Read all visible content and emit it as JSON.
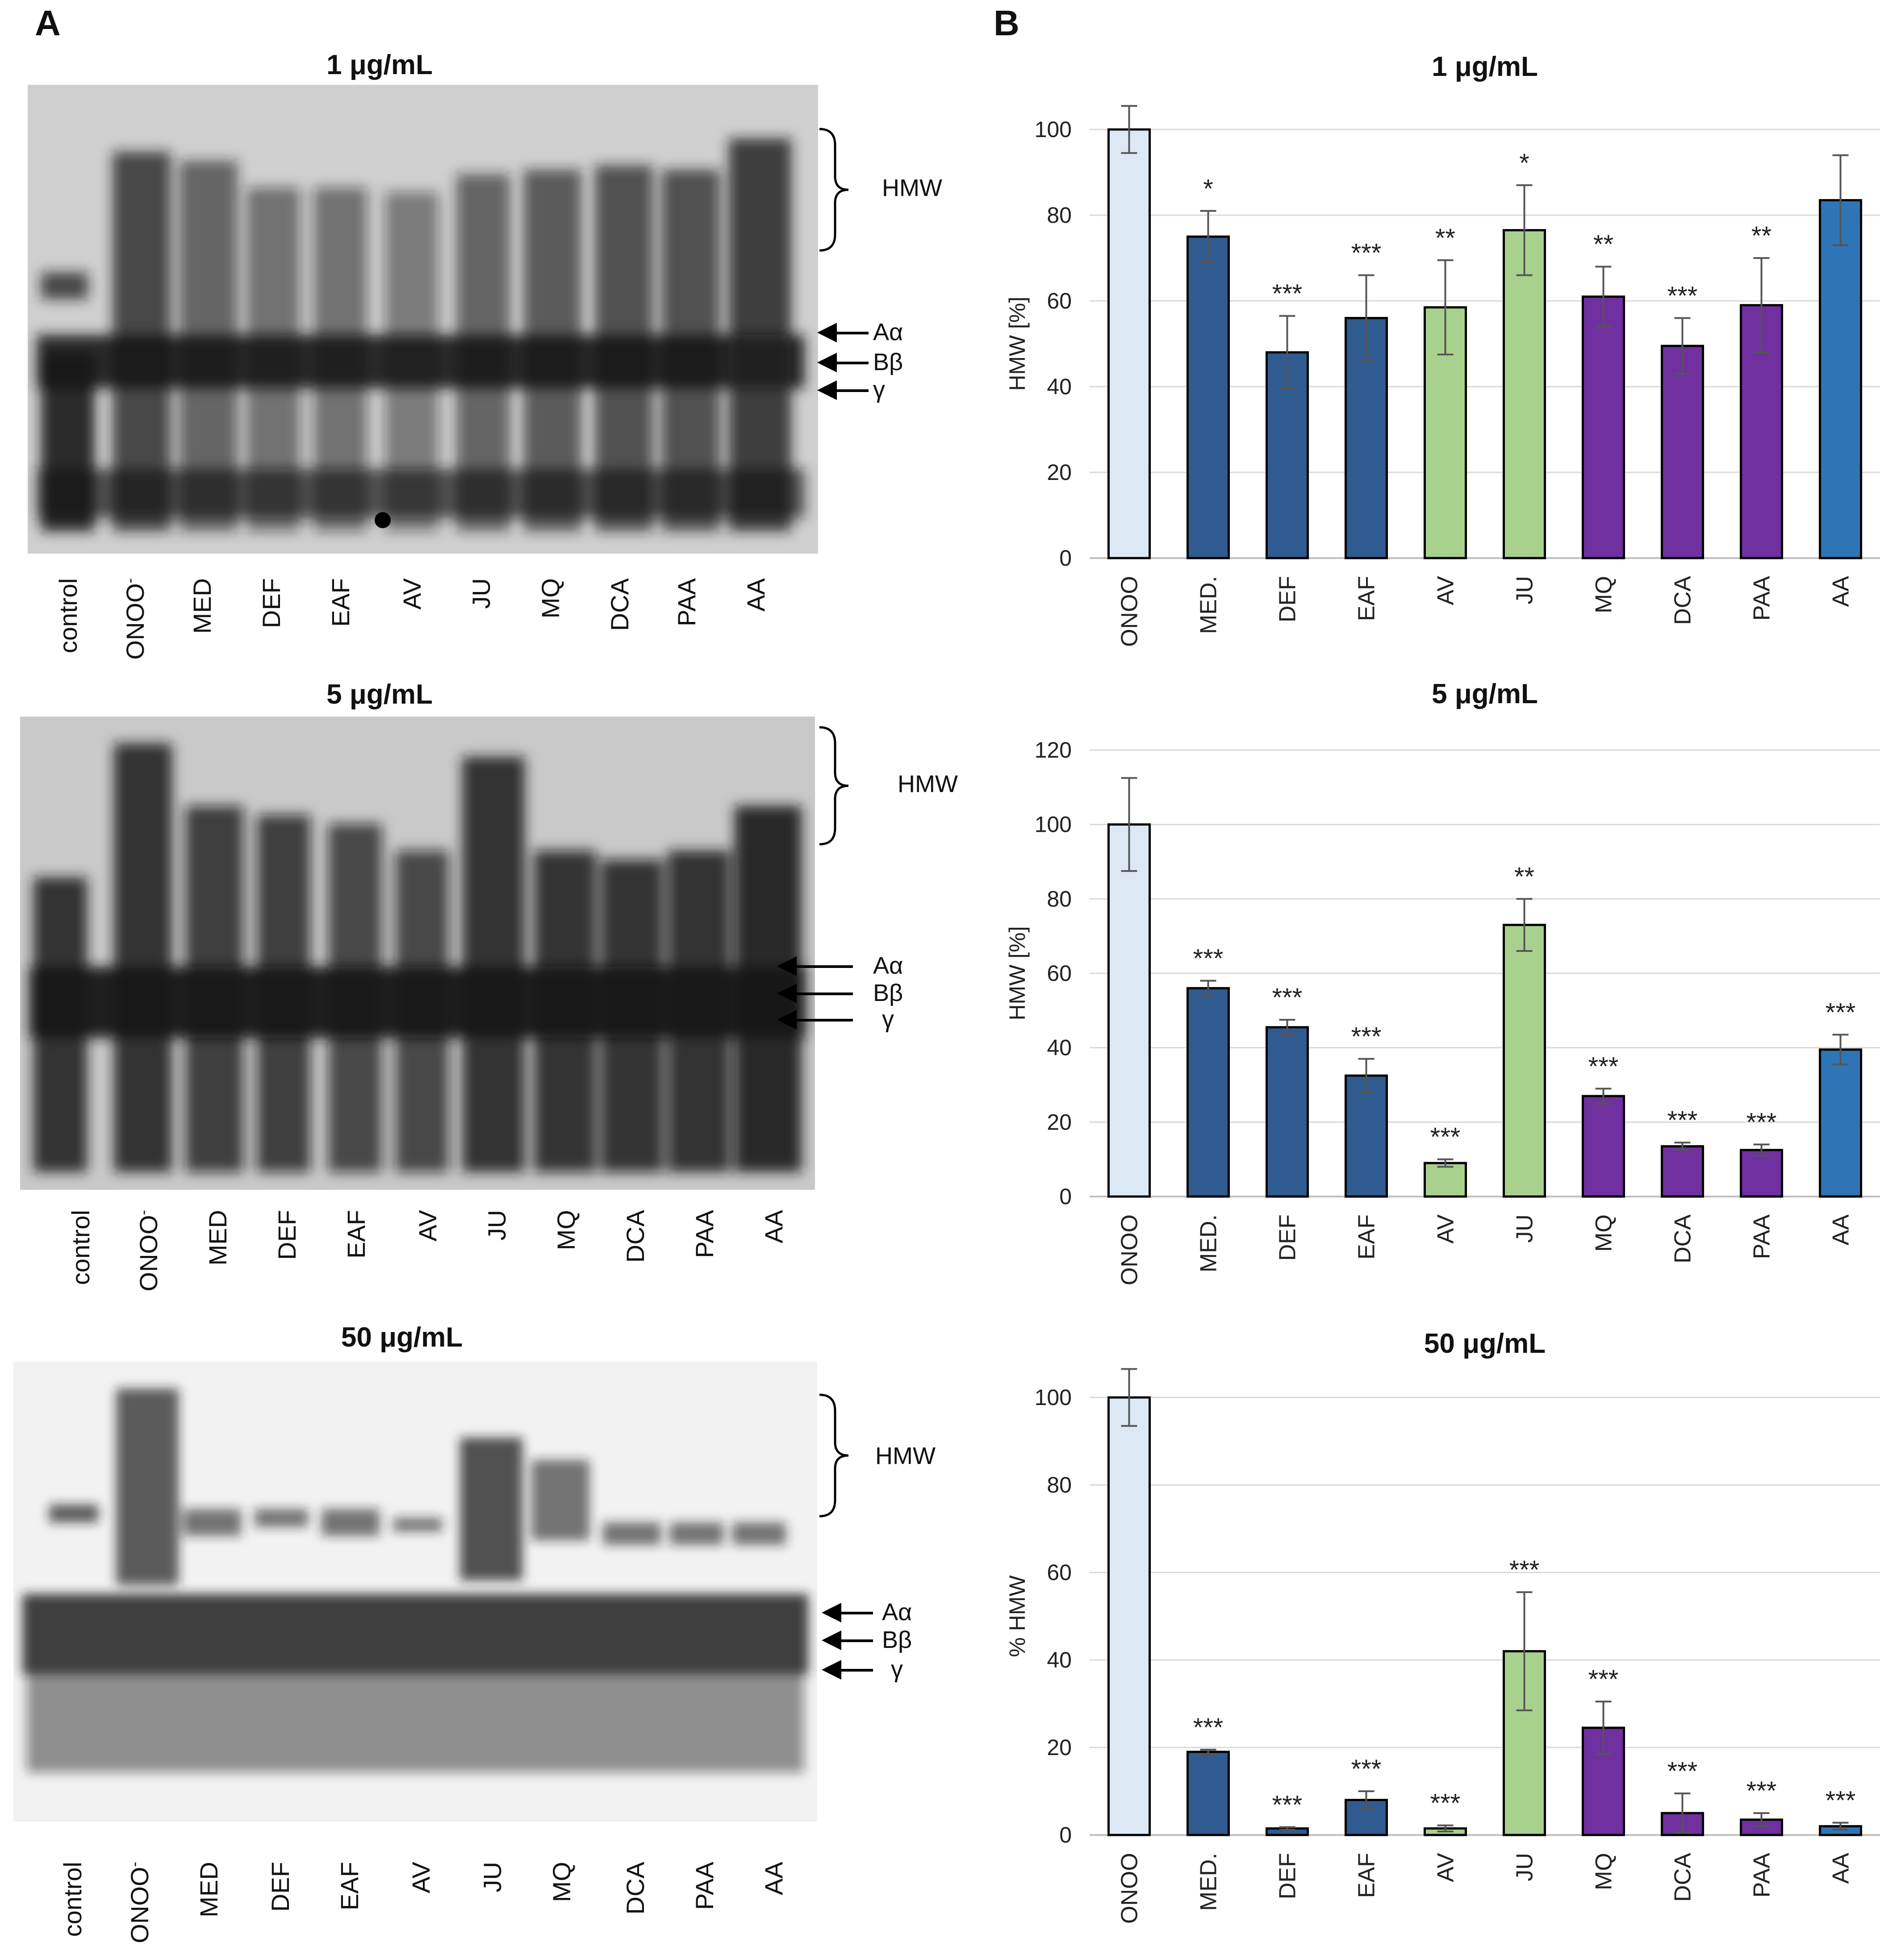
{
  "panel_a_label": "A",
  "panel_b_label": "B",
  "blots": [
    {
      "title": "1 μg/mL",
      "lanes": [
        "control",
        "ONOO",
        "MED",
        "DEF",
        "EAF",
        "AV",
        "JU",
        "MQ",
        "DCA",
        "PAA",
        "AA"
      ],
      "onoo_sup": "-",
      "hmw": "HMW",
      "bands": [
        "Aα",
        "Bβ",
        "γ"
      ]
    },
    {
      "title": "5 μg/mL",
      "lanes": [
        "control",
        "ONOO",
        "MED",
        "DEF",
        "EAF",
        "AV",
        "JU",
        "MQ",
        "DCA",
        "PAA",
        "AA"
      ],
      "onoo_sup": "-",
      "hmw": "HMW",
      "bands": [
        "Aα",
        "Bβ",
        "γ"
      ]
    },
    {
      "title": "50 μg/mL",
      "lanes": [
        "control",
        "ONOO",
        "MED",
        "DEF",
        "EAF",
        "AV",
        "JU",
        "MQ",
        "DCA",
        "PAA",
        "AA"
      ],
      "onoo_sup": "-",
      "hmw": "HMW",
      "bands": [
        "Aα",
        "Bβ",
        "γ"
      ]
    }
  ],
  "colors": {
    "onoo": "#dce9f5",
    "dark_blue": "#2f5b91",
    "green": "#a9d18e",
    "purple": "#7030a0",
    "mid_blue": "#2e75b6"
  },
  "chart_data": [
    {
      "type": "bar",
      "title": "1 μg/mL",
      "ylabel": "HMW [%]",
      "ylim": [
        0,
        100
      ],
      "yticks": [
        0,
        20,
        40,
        60,
        80,
        100
      ],
      "categories": [
        "ONOO",
        "MED.",
        "DEF",
        "EAF",
        "AV",
        "JU",
        "MQ",
        "DCA",
        "PAA",
        "AA"
      ],
      "values": [
        100,
        75,
        48,
        56,
        58.5,
        76.5,
        61,
        49.5,
        59,
        83.5
      ],
      "errors": [
        5.5,
        6,
        8.5,
        10,
        11,
        10.5,
        7,
        6.5,
        11,
        10.5
      ],
      "significance": [
        "",
        "*",
        "***",
        "***",
        "**",
        "*",
        "**",
        "***",
        "**",
        ""
      ],
      "bar_colors": [
        "#dce9f5",
        "#2f5b91",
        "#2f5b91",
        "#2f5b91",
        "#a9d18e",
        "#a9d18e",
        "#7030a0",
        "#7030a0",
        "#7030a0",
        "#2e75b6"
      ]
    },
    {
      "type": "bar",
      "title": "5 μg/mL",
      "ylabel": "HMW [%]",
      "ylim": [
        0,
        120
      ],
      "yticks": [
        0,
        20,
        40,
        60,
        80,
        100,
        120
      ],
      "categories": [
        "ONOO",
        "MED.",
        "DEF",
        "EAF",
        "AV",
        "JU",
        "MQ",
        "DCA",
        "PAA",
        "AA"
      ],
      "values": [
        100,
        56,
        45.5,
        32.5,
        9,
        73,
        27,
        13.5,
        12.5,
        39.5
      ],
      "errors": [
        12.5,
        2,
        2,
        4.5,
        1,
        7,
        2,
        1,
        1.5,
        4
      ],
      "significance": [
        "",
        "***",
        "***",
        "***",
        "***",
        "**",
        "***",
        "***",
        "***",
        "***"
      ],
      "bar_colors": [
        "#dce9f5",
        "#2f5b91",
        "#2f5b91",
        "#2f5b91",
        "#a9d18e",
        "#a9d18e",
        "#7030a0",
        "#7030a0",
        "#7030a0",
        "#2e75b6"
      ]
    },
    {
      "type": "bar",
      "title": "50 μg/mL",
      "ylabel": "% HMW",
      "ylim": [
        0,
        100
      ],
      "yticks": [
        0,
        20,
        40,
        60,
        80,
        100
      ],
      "categories": [
        "ONOO",
        "MED.",
        "DEF",
        "EAF",
        "AV",
        "JU",
        "MQ",
        "DCA",
        "PAA",
        "AA"
      ],
      "values": [
        100,
        19,
        1.5,
        8,
        1.5,
        42,
        24.5,
        5,
        3.5,
        2
      ],
      "errors": [
        6.5,
        0.5,
        0.3,
        2,
        0.7,
        13.5,
        6,
        4.5,
        1.5,
        0.8
      ],
      "significance": [
        "",
        "***",
        "***",
        "***",
        "***",
        "***",
        "***",
        "***",
        "***",
        "***"
      ],
      "bar_colors": [
        "#dce9f5",
        "#2f5b91",
        "#2f5b91",
        "#2f5b91",
        "#a9d18e",
        "#a9d18e",
        "#7030a0",
        "#7030a0",
        "#7030a0",
        "#2e75b6"
      ]
    }
  ]
}
